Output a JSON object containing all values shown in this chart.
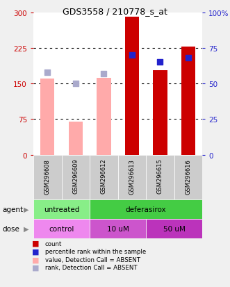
{
  "title": "GDS3558 / 210778_s_at",
  "samples": [
    "GSM296608",
    "GSM296609",
    "GSM296612",
    "GSM296613",
    "GSM296615",
    "GSM296616"
  ],
  "count_values": [
    null,
    null,
    null,
    290,
    178,
    228
  ],
  "count_absent": [
    160,
    70,
    162,
    null,
    null,
    null
  ],
  "rank_values": [
    null,
    null,
    null,
    70,
    65,
    68
  ],
  "rank_absent": [
    58,
    50,
    57,
    null,
    null,
    null
  ],
  "left_ylim": [
    0,
    300
  ],
  "right_ylim": [
    0,
    100
  ],
  "left_yticks": [
    0,
    75,
    150,
    225,
    300
  ],
  "right_yticks": [
    0,
    25,
    50,
    75,
    100
  ],
  "right_yticklabels": [
    "0",
    "25",
    "50",
    "75",
    "100%"
  ],
  "bar_width": 0.5,
  "color_count": "#cc0000",
  "color_count_absent": "#ffaaaa",
  "color_rank": "#2222cc",
  "color_rank_absent": "#aaaacc",
  "agent_colors": [
    "#88ee88",
    "#44cc44"
  ],
  "dose_colors": [
    "#ee88ee",
    "#cc55cc",
    "#bb33bb"
  ],
  "legend_labels": [
    "count",
    "percentile rank within the sample",
    "value, Detection Call = ABSENT",
    "rank, Detection Call = ABSENT"
  ],
  "legend_colors": [
    "#cc0000",
    "#2222cc",
    "#ffaaaa",
    "#aaaacc"
  ],
  "left_tick_color": "#cc0000",
  "right_tick_color": "#2222cc",
  "bg_color": "#cccccc",
  "plot_bg": "#ffffff",
  "fig_bg": "#f0f0f0"
}
